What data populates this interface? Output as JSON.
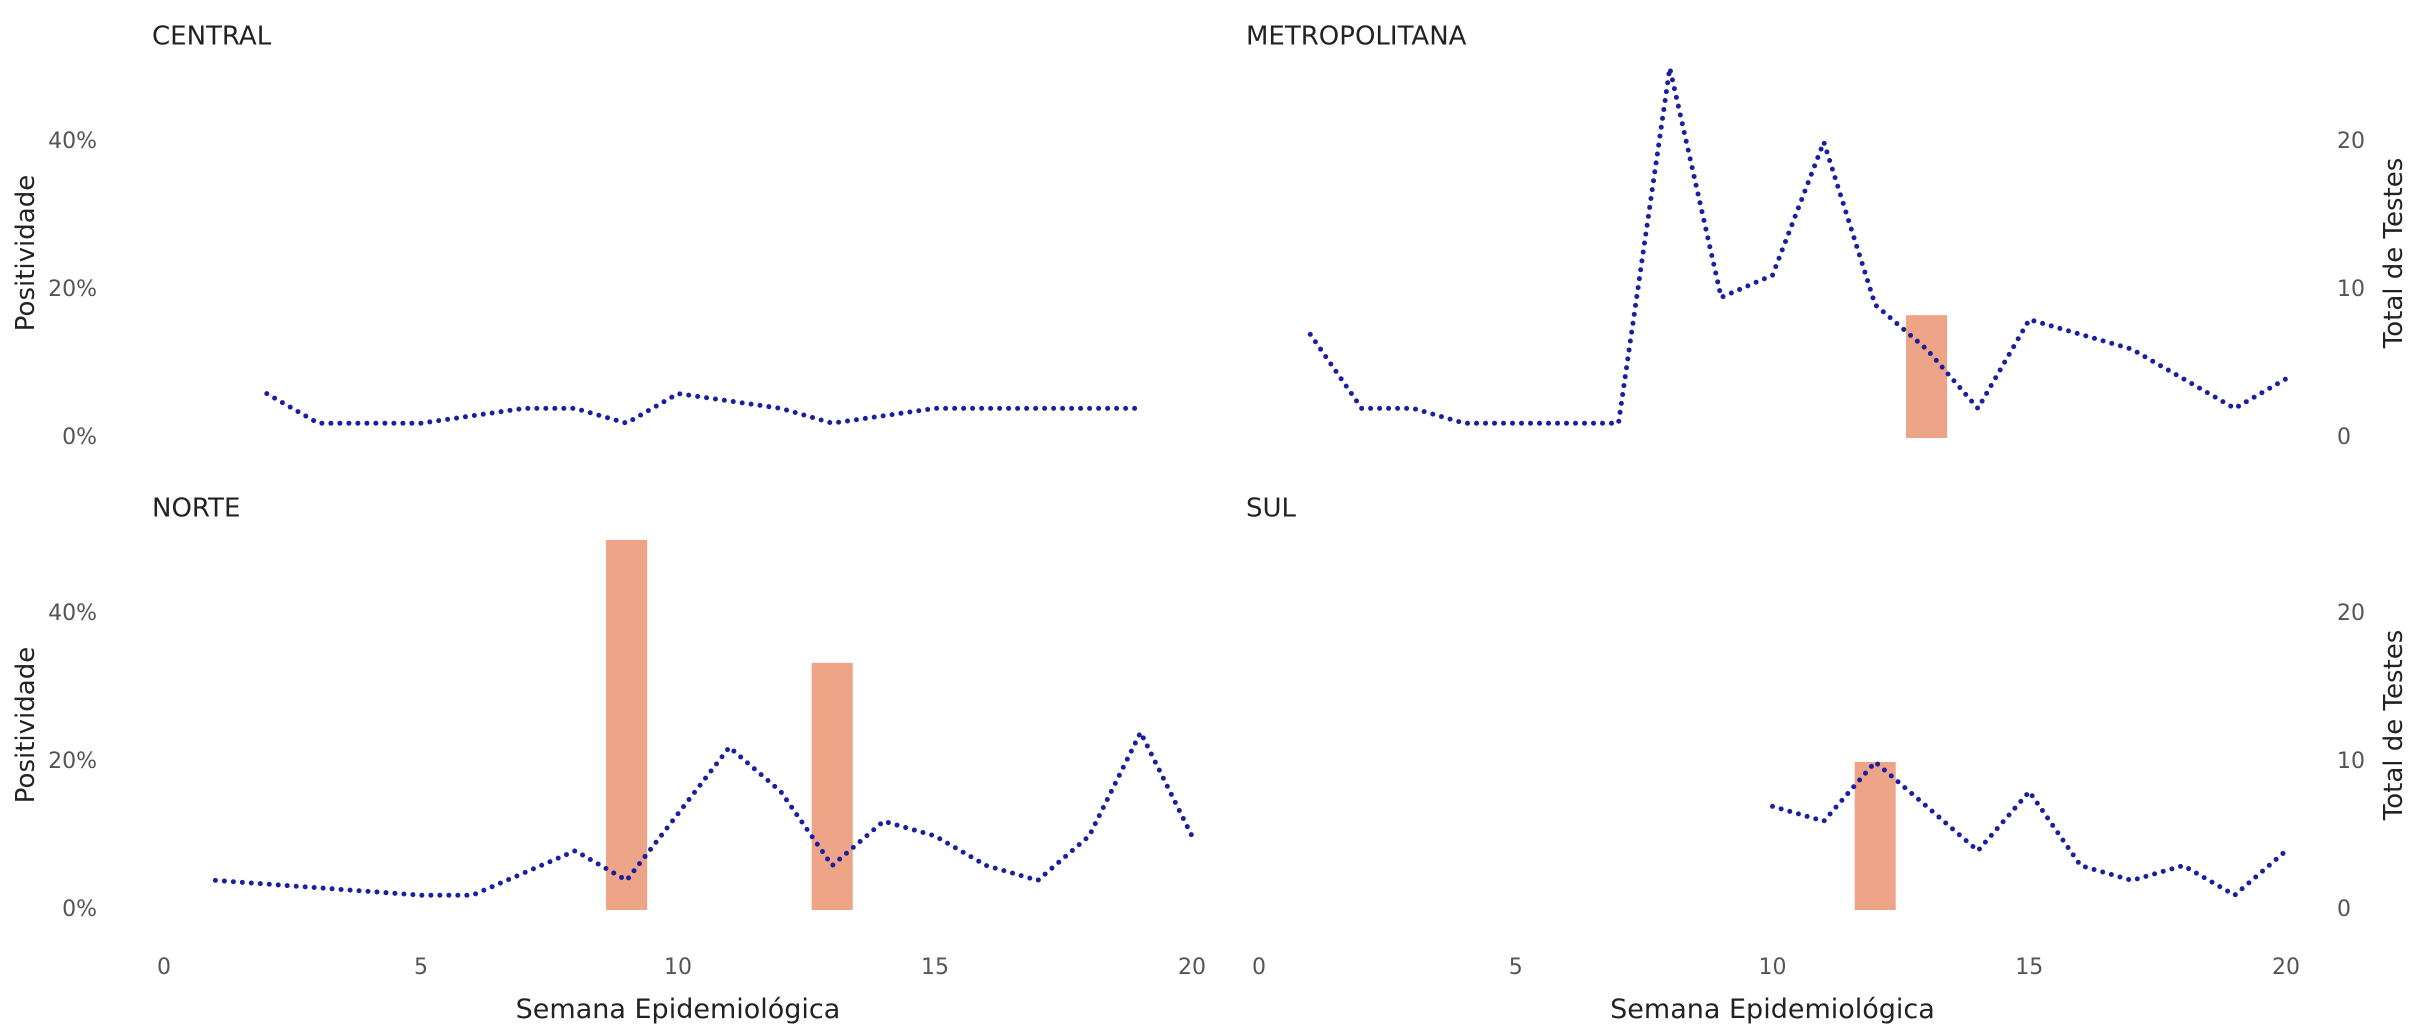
{
  "chart_data": [
    {
      "type": "line",
      "panel": "CENTRAL",
      "title": "CENTRAL",
      "x": [
        2,
        3,
        4,
        5,
        6,
        7,
        8,
        9,
        10,
        11,
        12,
        13,
        14,
        15,
        16,
        17,
        18,
        19
      ],
      "positividade": [
        6,
        2,
        2,
        2,
        3,
        4,
        4,
        2,
        6,
        5,
        4,
        2,
        3,
        4,
        4,
        4,
        4,
        4
      ],
      "bars": []
    },
    {
      "type": "line",
      "panel": "METROPOLITANA",
      "title": "METROPOLITANA",
      "x": [
        1,
        2,
        3,
        4,
        5,
        6,
        7,
        8,
        9,
        10,
        11,
        12,
        13,
        14,
        15,
        16,
        17,
        18,
        19,
        20
      ],
      "positividade": [
        14,
        4,
        4,
        2,
        2,
        2,
        2,
        50,
        19,
        22,
        40,
        18,
        12,
        4,
        16,
        14,
        12,
        8,
        4,
        8
      ],
      "bars": [
        {
          "x": 13,
          "tests": 8.3
        }
      ]
    },
    {
      "type": "line",
      "panel": "NORTE",
      "title": "NORTE",
      "x": [
        1,
        2,
        3,
        4,
        5,
        6,
        7,
        8,
        9,
        10,
        11,
        12,
        13,
        14,
        15,
        16,
        17,
        18,
        19,
        20
      ],
      "positividade": [
        4,
        3.5,
        3,
        2.5,
        2,
        2,
        5,
        8,
        4,
        13,
        22,
        16,
        6,
        12,
        10,
        6,
        4,
        10,
        24,
        10
      ],
      "bars": [
        {
          "x": 9,
          "tests": 25
        },
        {
          "x": 13,
          "tests": 16.7
        }
      ]
    },
    {
      "type": "line",
      "panel": "SUL",
      "title": "SUL",
      "x": [
        10,
        11,
        12,
        13,
        14,
        15,
        16,
        17,
        18,
        19,
        20
      ],
      "positividade": [
        14,
        12,
        20,
        14,
        8,
        16,
        6,
        4,
        6,
        2,
        8
      ],
      "bars": [
        {
          "x": 12,
          "tests": 10
        }
      ]
    }
  ],
  "axes": {
    "xlabel": "Semana Epidemiológica",
    "ylabel_left": "Positividade",
    "ylabel_right": "Total de Testes",
    "x_ticks": [
      0,
      5,
      10,
      15,
      20
    ],
    "x_tick_labels": [
      "0",
      "5",
      "10",
      "15",
      "20"
    ],
    "y_left_ticks": [
      0,
      20,
      40
    ],
    "y_left_tick_labels": [
      "0%",
      "20%",
      "40%"
    ],
    "y_right_ticks": [
      0,
      10,
      20
    ],
    "y_right_tick_labels": [
      "0",
      "10",
      "20"
    ],
    "xlim": [
      0,
      20
    ],
    "ylim_left": [
      0,
      50
    ],
    "ylim_right": [
      0,
      25
    ],
    "grid": false
  },
  "colors": {
    "line": "#1a1fa0",
    "bar": "#eea587",
    "text": "#222222",
    "tick": "#555555"
  }
}
